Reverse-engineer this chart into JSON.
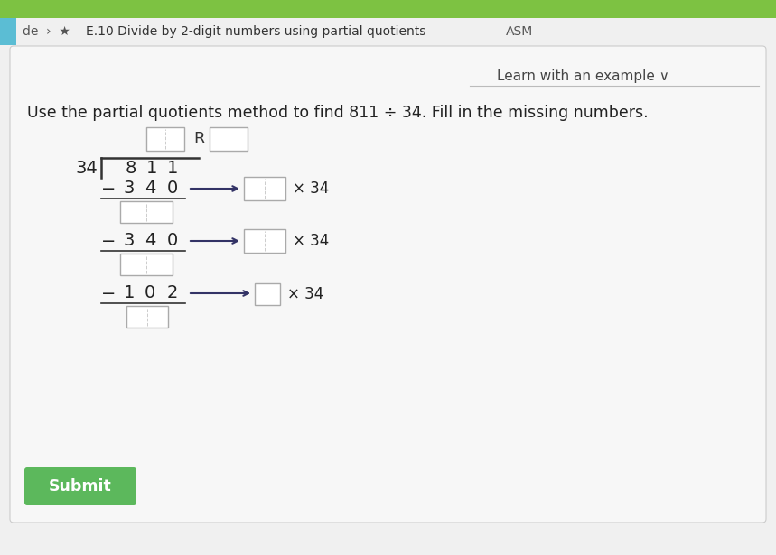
{
  "bg_top_color": "#87ceeb",
  "bg_nav_color": "#e8f4e8",
  "bg_content_color": "#f0f0f0",
  "header_text": "E.10 Divide by 2-digit numbers using partial quotients",
  "header_asm": "ASM",
  "header_prefix": "de  ›  ★",
  "learn_text": "Learn with an example ∨",
  "problem_text": "Use the partial quotients method to find 811 ÷ 34. Fill in the missing numbers.",
  "submit_text": "Submit",
  "submit_color": "#5cb85c",
  "submit_text_color": "#ffffff",
  "box_fill": "#e8e8e8",
  "box_border": "#aaaaaa",
  "line_color": "#333333",
  "text_color": "#222222",
  "arrow_color": "#333366",
  "nav_bg": "#f5f5f5",
  "top_green": "#7dc242",
  "teal_bar": "#5bbdd4"
}
